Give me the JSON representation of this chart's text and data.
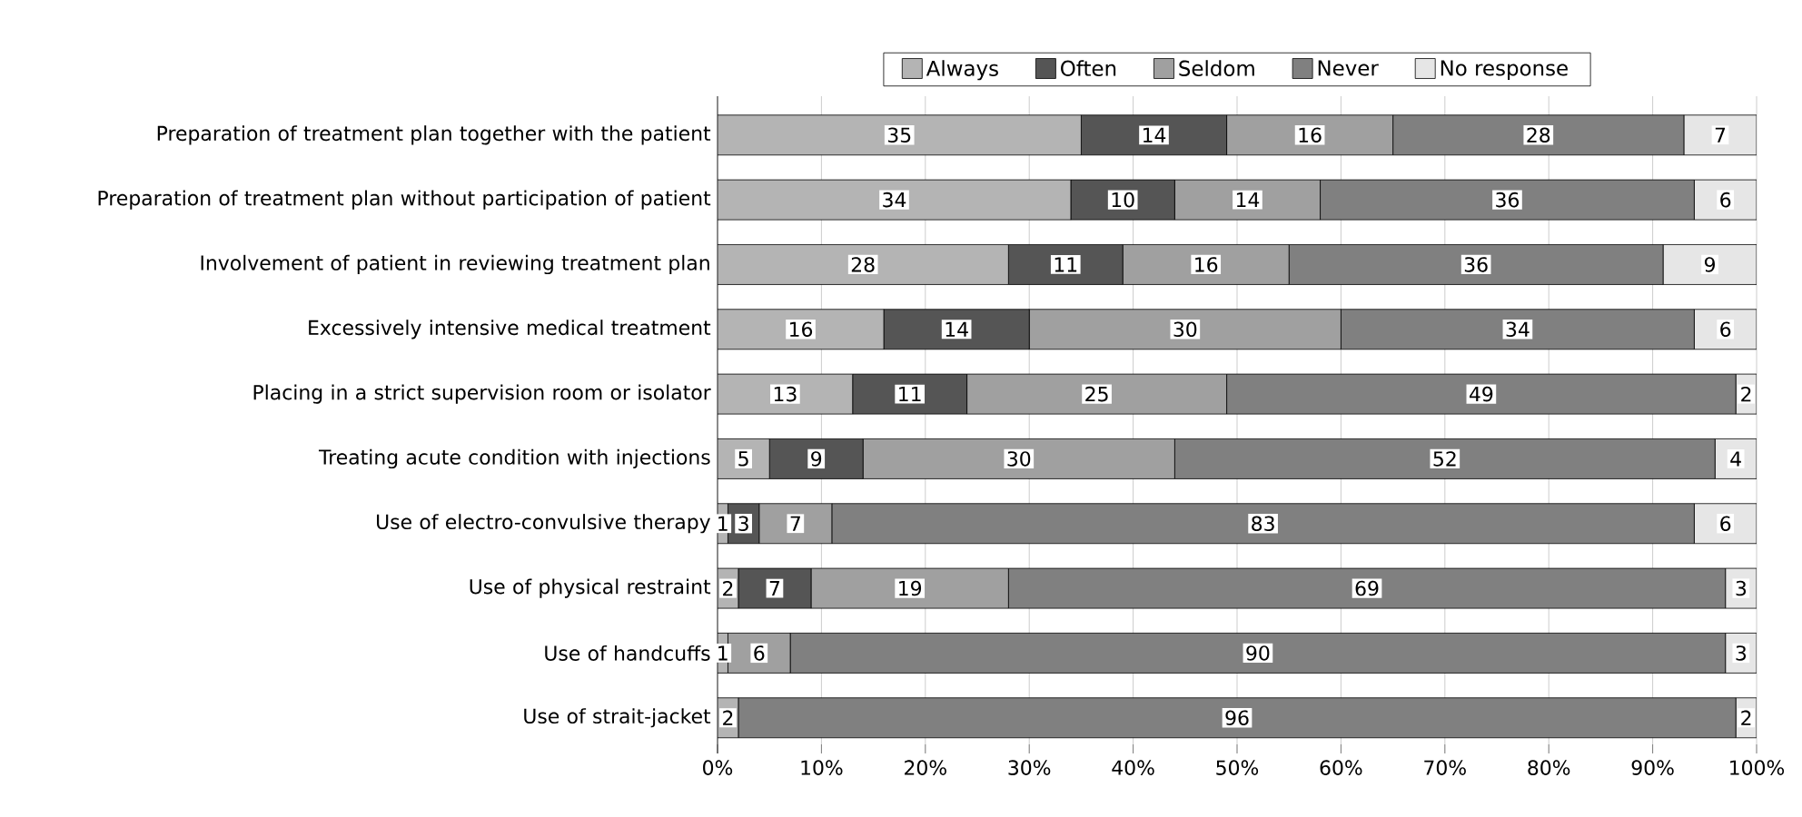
{
  "chart_data": {
    "type": "bar",
    "orientation": "horizontal",
    "stacked": true,
    "grid": "x",
    "legend": "top",
    "categories": [
      "Preparation of treatment plan together with the patient",
      "Preparation of treatment plan without participation of patient",
      "Involvement of patient in reviewing treatment plan",
      "Excessively intensive medical treatment",
      "Placing in a strict supervision room or isolator",
      "Treating acute condition with injections",
      "Use of electro-convulsive therapy",
      "Use of physical restraint",
      "Use of handcuffs",
      "Use of strait-jacket"
    ],
    "xlim": [
      0,
      100
    ],
    "xticks": [
      {
        "value": 0,
        "label": "0%"
      },
      {
        "value": 10,
        "label": "10%"
      },
      {
        "value": 20,
        "label": "20%"
      },
      {
        "value": 30,
        "label": "30%"
      },
      {
        "value": 40,
        "label": "40%"
      },
      {
        "value": 50,
        "label": "50%"
      },
      {
        "value": 60,
        "label": "60%"
      },
      {
        "value": 70,
        "label": "70%"
      },
      {
        "value": 80,
        "label": "80%"
      },
      {
        "value": 90,
        "label": "90%"
      },
      {
        "value": 100,
        "label": "100%"
      }
    ],
    "series": [
      {
        "name": "Always",
        "color": "#b4b4b4",
        "values": [
          35,
          34,
          28,
          16,
          13,
          5,
          1,
          2,
          1,
          2
        ],
        "value_labels": [
          "35",
          "34",
          "28",
          "16",
          "13",
          "5",
          "1",
          "2",
          "1",
          "2"
        ]
      },
      {
        "name": "Often",
        "color": "#555555",
        "values": [
          14,
          10,
          11,
          14,
          11,
          9,
          3,
          7,
          0,
          0
        ],
        "value_labels": [
          "14",
          "10",
          "11",
          "14",
          "11",
          "9",
          "3",
          "7",
          null,
          null
        ]
      },
      {
        "name": "Seldom",
        "color": "#a0a0a0",
        "values": [
          16,
          14,
          16,
          30,
          25,
          30,
          7,
          19,
          6,
          0
        ],
        "value_labels": [
          "16",
          "14",
          "16",
          "30",
          "25",
          "30",
          "7",
          "19",
          "6",
          null
        ]
      },
      {
        "name": "Never",
        "color": "#808080",
        "values": [
          28,
          36,
          36,
          34,
          49,
          52,
          83,
          69,
          90,
          96
        ],
        "value_labels": [
          "28",
          "36",
          "36",
          "34",
          "49",
          "52",
          "83",
          "69",
          "90",
          "96"
        ]
      },
      {
        "name": "No response",
        "color": "#e6e6e6",
        "values": [
          7,
          6,
          9,
          6,
          2,
          4,
          6,
          3,
          3,
          2
        ],
        "value_labels": [
          "7",
          "6",
          "9",
          "6",
          "2",
          "4",
          "6",
          "3",
          "3",
          "2"
        ]
      }
    ]
  }
}
